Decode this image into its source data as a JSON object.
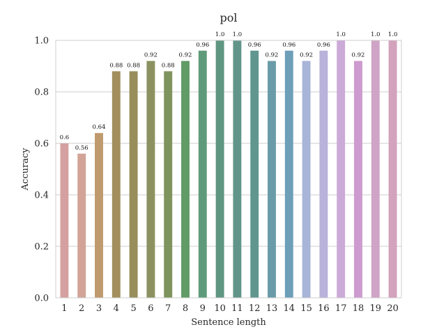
{
  "chart_data": {
    "type": "bar",
    "title": "pol",
    "xlabel": "Sentence length",
    "ylabel": "Accuracy",
    "ylim": [
      0,
      1.0
    ],
    "yticks": [
      "0.0",
      "0.2",
      "0.4",
      "0.6",
      "0.8",
      "1.0"
    ],
    "grid": "horizontal",
    "categories": [
      "1",
      "2",
      "3",
      "4",
      "5",
      "6",
      "7",
      "8",
      "9",
      "10",
      "11",
      "12",
      "13",
      "14",
      "15",
      "16",
      "17",
      "18",
      "19",
      "20"
    ],
    "values": [
      0.6,
      0.56,
      0.64,
      0.88,
      0.88,
      0.92,
      0.88,
      0.92,
      0.96,
      1.0,
      1.0,
      0.96,
      0.92,
      0.96,
      0.92,
      0.96,
      1.0,
      0.92,
      1.0,
      1.0
    ],
    "data_labels": [
      "0.6",
      "0.56",
      "0.64",
      "0.88",
      "0.88",
      "0.92",
      "0.88",
      "0.92",
      "0.96",
      "1.0",
      "1.0",
      "0.96",
      "0.92",
      "0.96",
      "0.92",
      "0.96",
      "1.0",
      "0.92",
      "1.0",
      "1.0"
    ],
    "colors": [
      "#d4a1a0",
      "#d1a497",
      "#bf9a6e",
      "#a28f5d",
      "#988e5c",
      "#8b9160",
      "#7f935d",
      "#619b66",
      "#5f9b7a",
      "#5f9681",
      "#629589",
      "#61968f",
      "#6a9ba8",
      "#6e9fb9",
      "#a8b4d8",
      "#b9b2da",
      "#ccaad8",
      "#cd9bcf",
      "#d0a4c6",
      "#d3a2bc"
    ]
  }
}
